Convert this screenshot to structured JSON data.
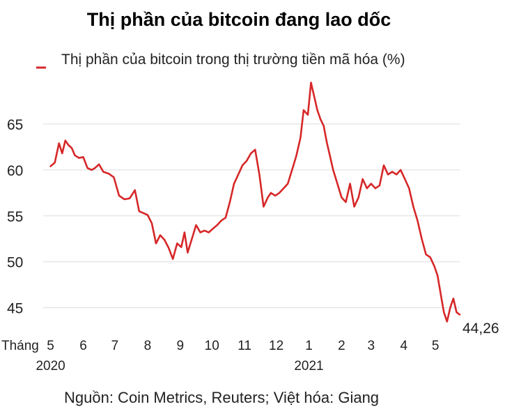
{
  "chart_data": {
    "type": "line",
    "title": "Thị phần của bitcoin đang lao dốc",
    "series": [
      {
        "name": "Thị phần của bitcoin trong thị trường tiền mã hóa (%)",
        "color": "#d62728",
        "x": [
          "2020-05-01",
          "2020-05-05",
          "2020-05-09",
          "2020-05-12",
          "2020-05-15",
          "2020-05-18",
          "2020-05-21",
          "2020-05-24",
          "2020-05-28",
          "2020-06-01",
          "2020-06-05",
          "2020-06-09",
          "2020-06-12",
          "2020-06-16",
          "2020-06-20",
          "2020-06-25",
          "2020-06-30",
          "2020-07-05",
          "2020-07-10",
          "2020-07-15",
          "2020-07-20",
          "2020-07-24",
          "2020-07-28",
          "2020-08-01",
          "2020-08-05",
          "2020-08-09",
          "2020-08-13",
          "2020-08-17",
          "2020-08-21",
          "2020-08-25",
          "2020-08-29",
          "2020-09-02",
          "2020-09-05",
          "2020-09-08",
          "2020-09-12",
          "2020-09-16",
          "2020-09-20",
          "2020-09-24",
          "2020-09-28",
          "2020-10-02",
          "2020-10-06",
          "2020-10-10",
          "2020-10-14",
          "2020-10-18",
          "2020-10-22",
          "2020-10-26",
          "2020-10-30",
          "2020-11-03",
          "2020-11-07",
          "2020-11-11",
          "2020-11-15",
          "2020-11-19",
          "2020-11-23",
          "2020-11-26",
          "2020-11-30",
          "2020-12-04",
          "2020-12-08",
          "2020-12-12",
          "2020-12-16",
          "2020-12-20",
          "2020-12-24",
          "2020-12-27",
          "2020-12-31",
          "2021-01-03",
          "2021-01-06",
          "2021-01-09",
          "2021-01-12",
          "2021-01-15",
          "2021-01-18",
          "2021-01-21",
          "2021-01-24",
          "2021-01-28",
          "2021-02-01",
          "2021-02-05",
          "2021-02-09",
          "2021-02-13",
          "2021-02-17",
          "2021-02-21",
          "2021-02-25",
          "2021-03-01",
          "2021-03-05",
          "2021-03-09",
          "2021-03-13",
          "2021-03-17",
          "2021-03-21",
          "2021-03-25",
          "2021-03-29",
          "2021-04-02",
          "2021-04-06",
          "2021-04-10",
          "2021-04-14",
          "2021-04-18",
          "2021-04-22",
          "2021-04-26",
          "2021-04-30",
          "2021-05-03",
          "2021-05-06",
          "2021-05-09",
          "2021-05-12",
          "2021-05-15",
          "2021-05-18",
          "2021-05-21",
          "2021-05-24"
        ],
        "y": [
          60.4,
          60.8,
          62.9,
          61.8,
          63.2,
          62.7,
          62.4,
          61.6,
          61.3,
          61.4,
          60.2,
          60.0,
          60.2,
          60.6,
          59.8,
          59.6,
          59.2,
          57.2,
          56.8,
          56.9,
          57.8,
          55.5,
          55.3,
          55.1,
          54.2,
          52.0,
          52.9,
          52.4,
          51.5,
          50.3,
          52.0,
          51.6,
          53.2,
          51.0,
          52.5,
          54.0,
          53.2,
          53.4,
          53.2,
          53.6,
          54.0,
          54.5,
          54.8,
          56.5,
          58.5,
          59.5,
          60.5,
          61.0,
          61.8,
          62.2,
          59.5,
          56.0,
          57.0,
          57.5,
          57.2,
          57.5,
          58.0,
          58.5,
          60.0,
          61.5,
          63.5,
          66.5,
          66.0,
          69.5,
          68.0,
          66.5,
          65.5,
          64.8,
          63.0,
          61.5,
          60.0,
          58.5,
          57.0,
          56.5,
          58.5,
          56.0,
          57.0,
          59.0,
          58.0,
          58.5,
          58.0,
          58.3,
          60.5,
          59.5,
          59.8,
          59.5,
          60.0,
          59.0,
          58.0,
          56.0,
          54.5,
          52.5,
          50.8,
          50.5,
          49.5,
          48.5,
          46.5,
          44.5,
          43.5,
          45.0,
          46.0,
          44.5,
          44.26
        ]
      }
    ],
    "end_label": "44,26",
    "yticks": [
      "65",
      "60",
      "55",
      "50",
      "45"
    ],
    "ytick_values": [
      65,
      60,
      55,
      50,
      45
    ],
    "ylim": [
      43,
      70
    ],
    "xlim": [
      "2020-04-24",
      "2021-05-24"
    ],
    "xlabel_prefix": "Tháng",
    "xticks": [
      {
        "label": "5",
        "date": "2020-05-01"
      },
      {
        "label": "6",
        "date": "2020-06-01"
      },
      {
        "label": "7",
        "date": "2020-07-01"
      },
      {
        "label": "8",
        "date": "2020-08-01"
      },
      {
        "label": "9",
        "date": "2020-09-01"
      },
      {
        "label": "10",
        "date": "2020-10-01"
      },
      {
        "label": "11",
        "date": "2020-11-01"
      },
      {
        "label": "12",
        "date": "2020-12-01"
      },
      {
        "label": "1",
        "date": "2021-01-01"
      },
      {
        "label": "2",
        "date": "2021-02-01"
      },
      {
        "label": "3",
        "date": "2021-03-01"
      },
      {
        "label": "4",
        "date": "2021-04-01"
      },
      {
        "label": "5",
        "date": "2021-05-01"
      }
    ],
    "year_labels": [
      {
        "label": "2020",
        "date": "2020-05-01"
      },
      {
        "label": "2021",
        "date": "2021-01-01"
      }
    ],
    "grid": "horizontal",
    "legend_position": "top-left"
  },
  "source": "Nguồn: Coin Metrics, Reuters; Việt hóa: Giang"
}
